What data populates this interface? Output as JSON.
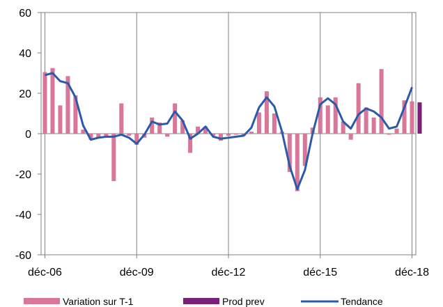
{
  "chart_data": {
    "type": "bar",
    "x_ticks": [
      "déc-06",
      "déc-09",
      "déc-12",
      "déc-15",
      "déc-18"
    ],
    "y_ticks": [
      "60",
      "40",
      "20",
      "0",
      "-20",
      "-40",
      "-60"
    ],
    "ylim": [
      -60,
      60
    ],
    "grid": "vertical-at-year-ticks",
    "colors": {
      "variation": "#d9779b",
      "prod_prev": "#7a1f7a",
      "tendance": "#2a5aa8"
    },
    "legend": {
      "position": "bottom",
      "items": [
        {
          "label": "Variation sur T-1",
          "kind": "bar",
          "color": "#d9779b"
        },
        {
          "label": "Prod prev",
          "kind": "bar",
          "color": "#7a1f7a"
        },
        {
          "label": "Tendance",
          "kind": "line",
          "color": "#2a5aa8"
        }
      ]
    },
    "series": [
      {
        "name": "Variation sur T-1",
        "kind": "bar",
        "values": [
          30.5,
          32.5,
          14,
          28.5,
          19,
          2,
          -3,
          -2,
          -1,
          -23.5,
          15,
          -1,
          -5.5,
          -2,
          8,
          5.5,
          -1.5,
          15,
          6.5,
          -9.5,
          3.5,
          3.5,
          -1,
          -3.5,
          -1,
          -0.5,
          -1,
          1,
          10.5,
          21,
          10,
          1,
          -19,
          -28.5,
          -16,
          3,
          18,
          14,
          18,
          6,
          -3,
          25,
          13,
          8,
          32,
          -0.5,
          2.5,
          16.5,
          16
        ]
      },
      {
        "name": "Prod prev",
        "kind": "bar",
        "values": [
          null,
          null,
          null,
          null,
          null,
          null,
          null,
          null,
          null,
          null,
          null,
          null,
          null,
          null,
          null,
          null,
          null,
          null,
          null,
          null,
          null,
          null,
          null,
          null,
          null,
          null,
          null,
          null,
          null,
          null,
          null,
          null,
          null,
          null,
          null,
          null,
          null,
          null,
          null,
          null,
          null,
          null,
          null,
          null,
          null,
          null,
          null,
          null,
          null,
          15.5
        ]
      },
      {
        "name": "Tendance",
        "kind": "line",
        "values": [
          29,
          30,
          26,
          25,
          18,
          4,
          -3,
          -2,
          -1.5,
          -1.5,
          -0.5,
          -2,
          -5,
          -0.5,
          6,
          4.5,
          5,
          11,
          6.5,
          -2.5,
          0,
          3.5,
          -1.5,
          -2.5,
          -2,
          -1.5,
          -1,
          3,
          13,
          18,
          13.5,
          1,
          -16,
          -27.5,
          -18,
          0,
          14.5,
          17.5,
          14.5,
          6,
          2.5,
          9.5,
          12.5,
          11,
          8,
          2.5,
          3.5,
          13,
          23
        ]
      }
    ]
  }
}
